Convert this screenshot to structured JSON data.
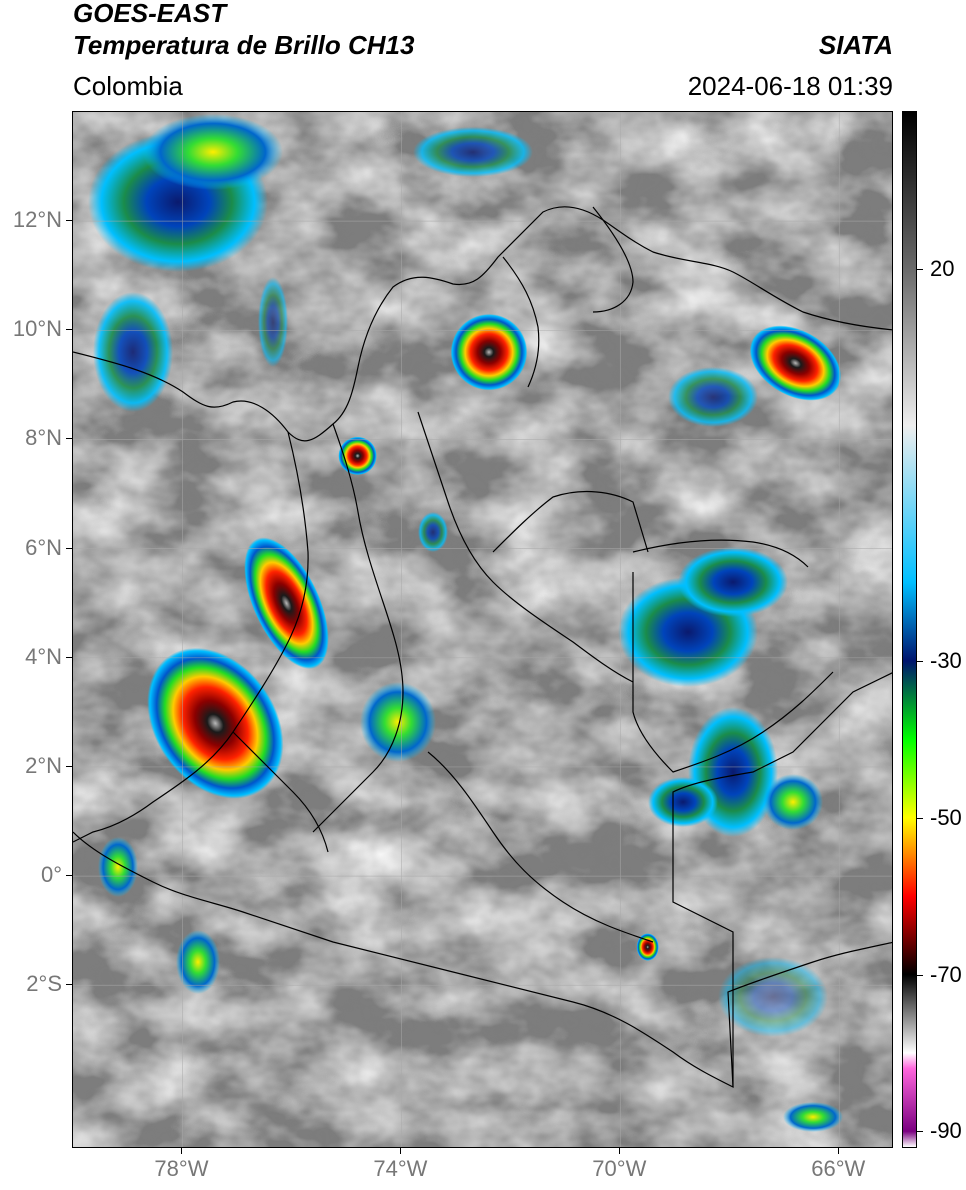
{
  "header": {
    "satellite": "GOES-EAST",
    "product": "Temperatura de Brillo CH13",
    "organization": "SIATA",
    "region": "Colombia",
    "timestamp": "2024-06-18 01:39"
  },
  "map": {
    "lon_range": [
      -80,
      -65
    ],
    "lat_range": [
      -5,
      14
    ],
    "lat_ticks": [
      {
        "value": 12,
        "label": "12°N"
      },
      {
        "value": 10,
        "label": "10°N"
      },
      {
        "value": 8,
        "label": "8°N"
      },
      {
        "value": 6,
        "label": "6°N"
      },
      {
        "value": 4,
        "label": "4°N"
      },
      {
        "value": 2,
        "label": "2°N"
      },
      {
        "value": 0,
        "label": "0°"
      },
      {
        "value": -2,
        "label": "2°S"
      }
    ],
    "lon_ticks": [
      {
        "value": -78,
        "label": "78°W"
      },
      {
        "value": -74,
        "label": "74°W"
      },
      {
        "value": -70,
        "label": "70°W"
      },
      {
        "value": -66,
        "label": "66°W"
      }
    ],
    "grid": true,
    "storm_cells": [
      {
        "lon": -77.4,
        "lat": 2.8,
        "rx": 1.1,
        "ry": 1.5,
        "rot": -35,
        "min_temp": -75
      },
      {
        "lon": -76.1,
        "lat": 5.0,
        "rx": 0.6,
        "ry": 1.3,
        "rot": -25,
        "min_temp": -72
      },
      {
        "lon": -72.4,
        "lat": 9.6,
        "rx": 0.7,
        "ry": 0.7,
        "rot": 0,
        "min_temp": -78
      },
      {
        "lon": -74.8,
        "lat": 7.7,
        "rx": 0.35,
        "ry": 0.35,
        "rot": 0,
        "min_temp": -76
      },
      {
        "lon": -66.8,
        "lat": 9.4,
        "rx": 0.9,
        "ry": 0.6,
        "rot": 30,
        "min_temp": -70
      },
      {
        "lon": -69.5,
        "lat": -1.3,
        "rx": 0.2,
        "ry": 0.25,
        "rot": 0,
        "min_temp": -62
      }
    ]
  },
  "colorbar": {
    "vmin": -92,
    "vmax": 40,
    "ticks": [
      {
        "value": 20,
        "label": "20"
      },
      {
        "value": -30,
        "label": "-30"
      },
      {
        "value": -50,
        "label": "-50"
      },
      {
        "value": -70,
        "label": "-70"
      },
      {
        "value": -90,
        "label": "-90"
      }
    ],
    "stops": [
      {
        "value": 40,
        "color": "#000000"
      },
      {
        "value": 20,
        "color": "#6a6a6a"
      },
      {
        "value": 0,
        "color": "#eeeeee"
      },
      {
        "value": -20,
        "color": "#00bfff"
      },
      {
        "value": -30,
        "color": "#00146e"
      },
      {
        "value": -40,
        "color": "#00ff00"
      },
      {
        "value": -50,
        "color": "#ffff00"
      },
      {
        "value": -60,
        "color": "#ff0000"
      },
      {
        "value": -70,
        "color": "#000000"
      },
      {
        "value": -80,
        "color": "#ffffff"
      },
      {
        "value": -82,
        "color": "#ff66dd"
      },
      {
        "value": -90,
        "color": "#7a0080"
      },
      {
        "value": -92,
        "color": "#ffffff"
      }
    ]
  }
}
